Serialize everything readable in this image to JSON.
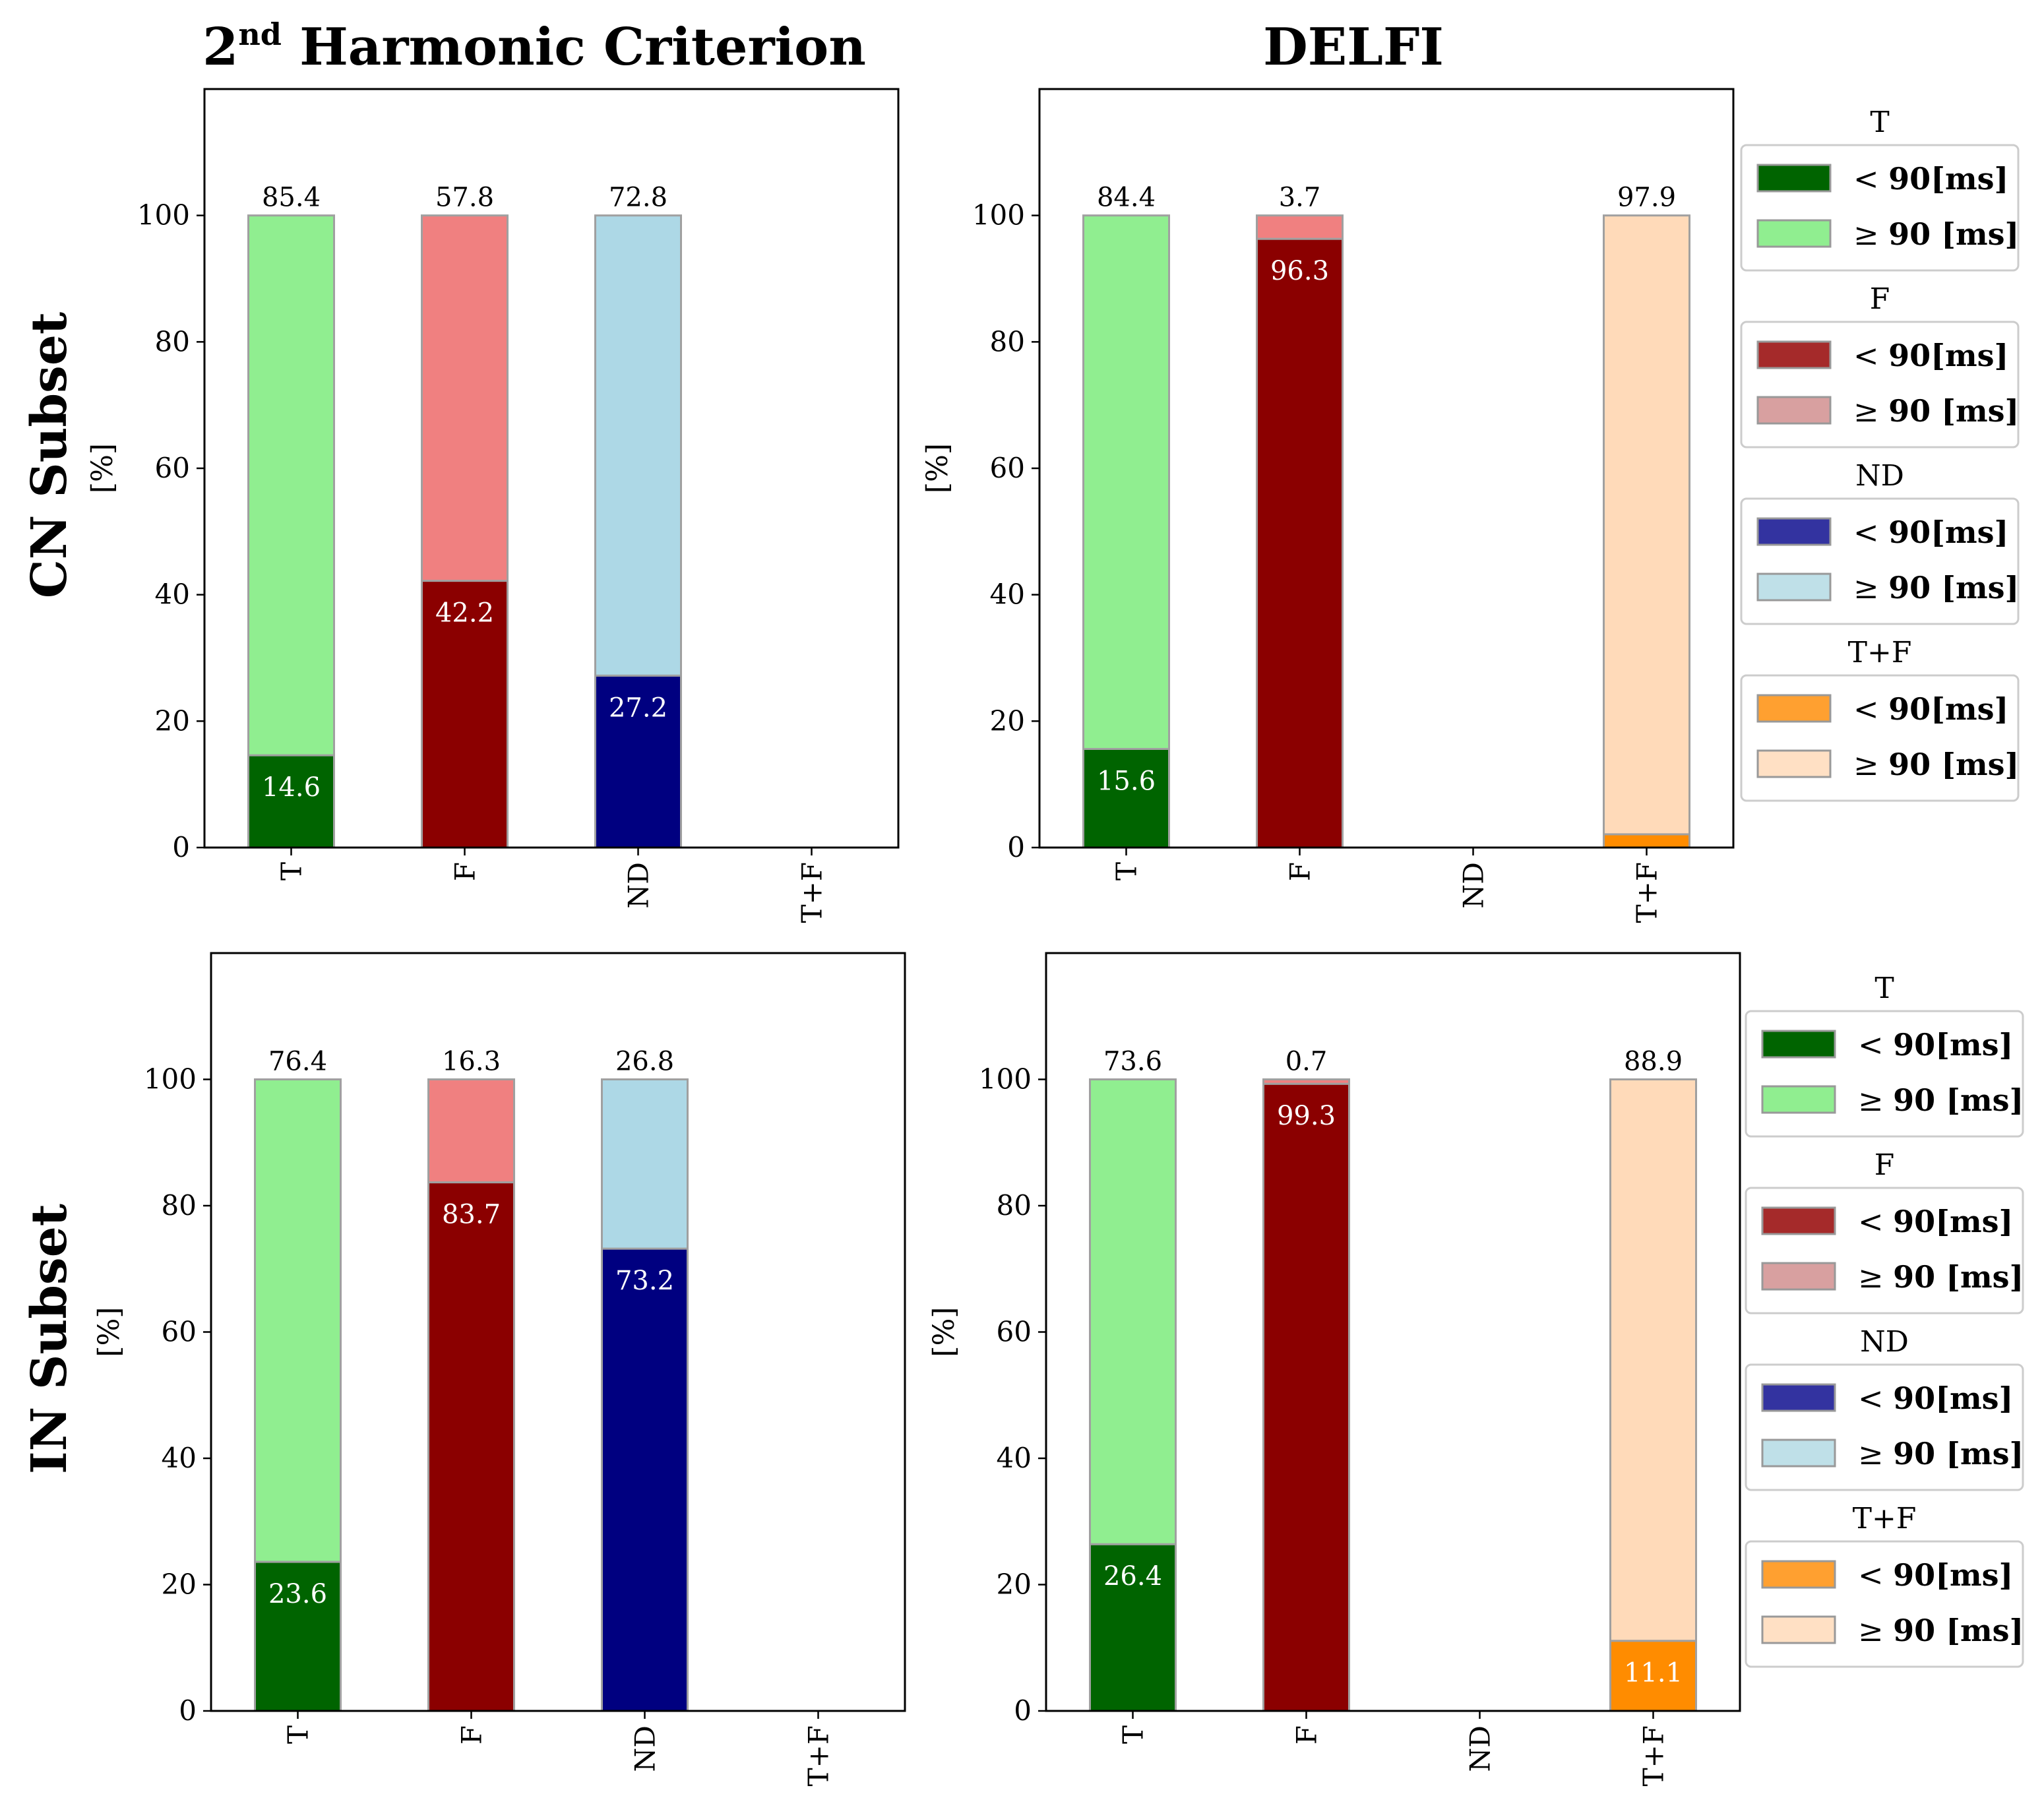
{
  "figure": {
    "col_titles": [
      {
        "main": "2",
        "sup": "nd",
        "rest": " Harmonic Criterion"
      },
      {
        "main": "DELFI",
        "sup": "",
        "rest": ""
      }
    ],
    "row_titles": [
      "CN Subset",
      "IN Subset"
    ],
    "legend_threshold": {
      "less": "<",
      "ge": "≥",
      "value": "90",
      "unit": "[ms]"
    }
  },
  "colors": {
    "T": {
      "lt": "#006400",
      "ge": "#90ee90",
      "leg_lt": "#006400",
      "leg_ge": "#90ee90"
    },
    "F": {
      "lt": "#8b0000",
      "ge": "#f08080",
      "leg_lt": "#a52a2a",
      "leg_ge": "#d8a0a0"
    },
    "ND": {
      "lt": "#000080",
      "ge": "#add8e6",
      "leg_lt": "#3333a0",
      "leg_ge": "#bfe0e8"
    },
    "T+F": {
      "lt": "#ff8c00",
      "ge": "#ffdab9",
      "leg_lt": "#ffa030",
      "leg_ge": "#ffe0c4"
    }
  },
  "legends": [
    [
      {
        "title": "T",
        "key": "T"
      },
      {
        "title": "F",
        "key": "F"
      },
      {
        "title": "ND",
        "key": "ND"
      },
      {
        "title": "T+F",
        "key": "T+F"
      }
    ],
    [
      {
        "title": "T",
        "key": "T"
      },
      {
        "title": "F",
        "key": "F"
      },
      {
        "title": "ND",
        "key": "ND"
      },
      {
        "title": "T+F",
        "key": "T+F"
      }
    ]
  ],
  "chart_data": [
    {
      "type": "bar",
      "stacked": true,
      "panel": "CN Subset / 2nd Harmonic Criterion",
      "categories": [
        "T",
        "F",
        "ND",
        "T+F"
      ],
      "ylabel": "[%]",
      "ylim": [
        0,
        120
      ],
      "yticks": [
        0,
        20,
        40,
        60,
        80,
        100
      ],
      "series": [
        {
          "name": "< 90[ms]",
          "values": [
            14.6,
            42.2,
            27.2,
            0
          ]
        },
        {
          "name": "≥ 90 [ms]",
          "values": [
            85.4,
            57.8,
            72.8,
            0
          ]
        }
      ],
      "bottom_labels": [
        "14.6",
        "42.2",
        "27.2",
        ""
      ],
      "top_labels": [
        "85.4",
        "57.8",
        "72.8",
        ""
      ]
    },
    {
      "type": "bar",
      "stacked": true,
      "panel": "CN Subset / DELFI",
      "categories": [
        "T",
        "F",
        "ND",
        "T+F"
      ],
      "ylabel": "[%]",
      "ylim": [
        0,
        120
      ],
      "yticks": [
        0,
        20,
        40,
        60,
        80,
        100
      ],
      "series": [
        {
          "name": "< 90[ms]",
          "values": [
            15.6,
            96.3,
            0,
            2.1
          ]
        },
        {
          "name": "≥ 90 [ms]",
          "values": [
            84.4,
            3.7,
            0,
            97.9
          ]
        }
      ],
      "bottom_labels": [
        "15.6",
        "96.3",
        "",
        ""
      ],
      "top_labels": [
        "84.4",
        "3.7",
        "",
        "97.9"
      ]
    },
    {
      "type": "bar",
      "stacked": true,
      "panel": "IN Subset / 2nd Harmonic Criterion",
      "categories": [
        "T",
        "F",
        "ND",
        "T+F"
      ],
      "ylabel": "[%]",
      "ylim": [
        0,
        120
      ],
      "yticks": [
        0,
        20,
        40,
        60,
        80,
        100
      ],
      "series": [
        {
          "name": "< 90[ms]",
          "values": [
            23.6,
            83.7,
            73.2,
            0
          ]
        },
        {
          "name": "≥ 90 [ms]",
          "values": [
            76.4,
            16.3,
            26.8,
            0
          ]
        }
      ],
      "bottom_labels": [
        "23.6",
        "83.7",
        "73.2",
        ""
      ],
      "top_labels": [
        "76.4",
        "16.3",
        "26.8",
        ""
      ]
    },
    {
      "type": "bar",
      "stacked": true,
      "panel": "IN Subset / DELFI",
      "categories": [
        "T",
        "F",
        "ND",
        "T+F"
      ],
      "ylabel": "[%]",
      "ylim": [
        0,
        120
      ],
      "yticks": [
        0,
        20,
        40,
        60,
        80,
        100
      ],
      "series": [
        {
          "name": "< 90[ms]",
          "values": [
            26.4,
            99.3,
            0,
            11.1
          ]
        },
        {
          "name": "≥ 90 [ms]",
          "values": [
            73.6,
            0.7,
            0,
            88.9
          ]
        }
      ],
      "bottom_labels": [
        "26.4",
        "99.3",
        "",
        "11.1"
      ],
      "top_labels": [
        "73.6",
        "0.7",
        "",
        "88.9"
      ]
    }
  ]
}
